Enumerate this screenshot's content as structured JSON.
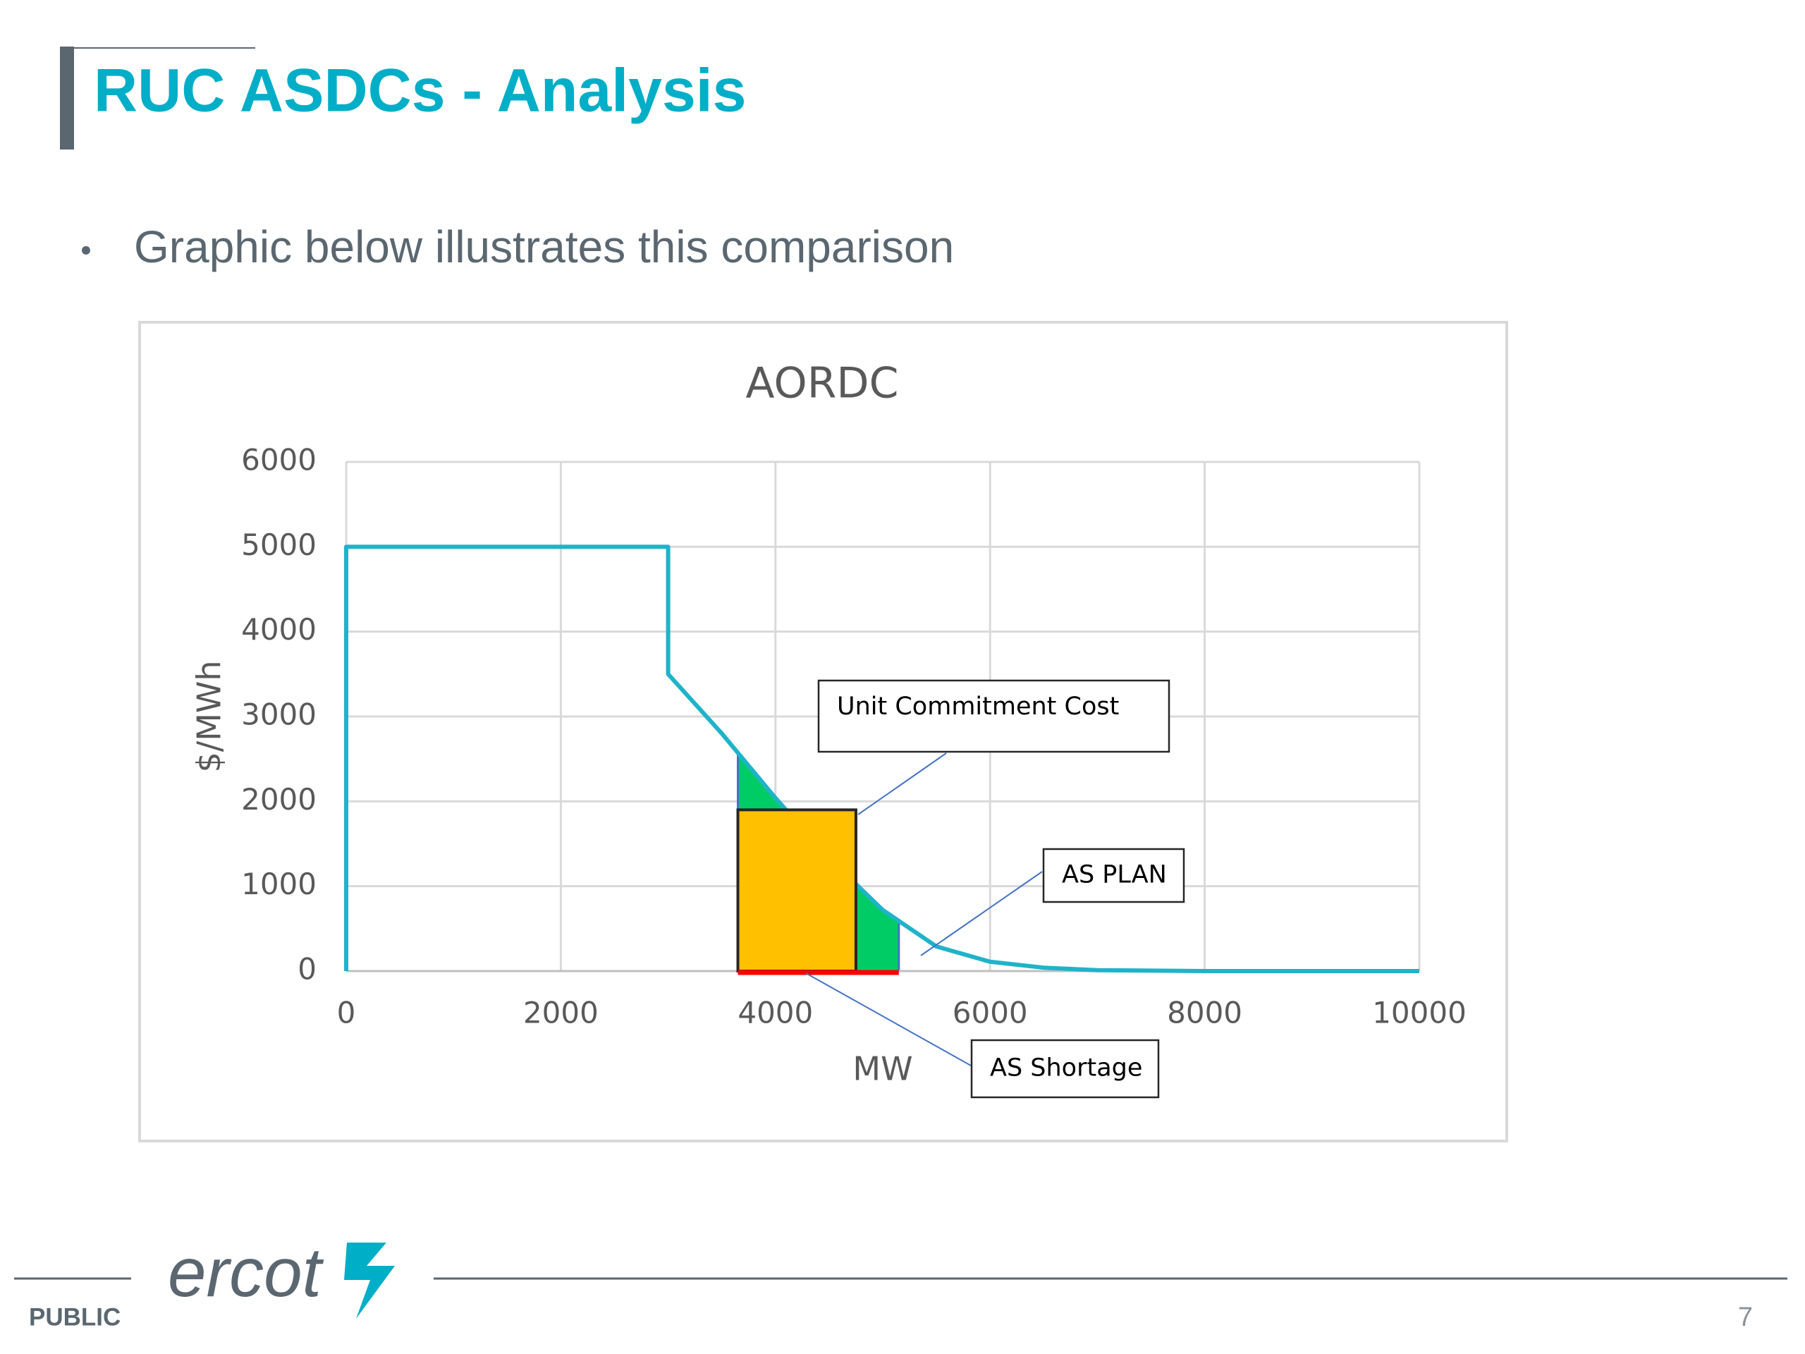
{
  "header": {
    "title": "RUC ASDCs - Analysis"
  },
  "bullet": "Graphic below illustrates this comparison",
  "chart_data": {
    "type": "line",
    "title": "AORDC",
    "x_label": "MW",
    "y_label": "$/MWh",
    "x": [
      0,
      0,
      3000,
      3000,
      3500,
      4000,
      4500,
      5000,
      5500,
      6000,
      6500,
      7000,
      8000,
      10000
    ],
    "series": [
      {
        "color": "#1fb3c9",
        "values": [
          0,
          5000,
          5000,
          3500,
          2800,
          2040,
          1330,
          720,
          290,
          110,
          40,
          10,
          0,
          0
        ]
      }
    ],
    "xlim": [
      0,
      10000
    ],
    "xticks": [
      0,
      2000,
      4000,
      6000,
      8000,
      10000
    ],
    "ylim": [
      0,
      6000
    ],
    "yticks": [
      0,
      1000,
      2000,
      3000,
      4000,
      5000,
      6000
    ],
    "grid": true,
    "annotations": [
      {
        "text": "Unit Commitment Cost",
        "x": [
          3650,
          4750
        ],
        "y": 1900,
        "color": "#ffc000"
      },
      {
        "text": "AS PLAN",
        "x": [
          3650,
          5150
        ],
        "color": "#00cc66"
      },
      {
        "text": "AS Shortage",
        "x": [
          3650,
          5150
        ],
        "color": "#ff0000"
      }
    ]
  },
  "footer": {
    "logo": "ercot",
    "label": "PUBLIC",
    "page": "7"
  }
}
